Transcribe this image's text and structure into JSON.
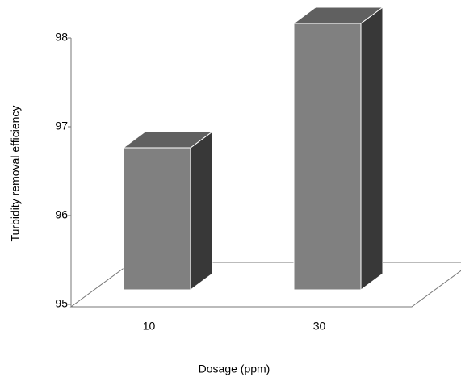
{
  "chart_data": {
    "type": "bar3d",
    "x_label": "Dosage (ppm)",
    "y_label": "Turbidity removal efficiency",
    "categories": [
      "10",
      "30"
    ],
    "values": [
      96.6,
      98.0
    ],
    "color": "#808080",
    "ylim": [
      95,
      98
    ],
    "yticks": [
      95,
      96,
      97,
      98
    ]
  }
}
